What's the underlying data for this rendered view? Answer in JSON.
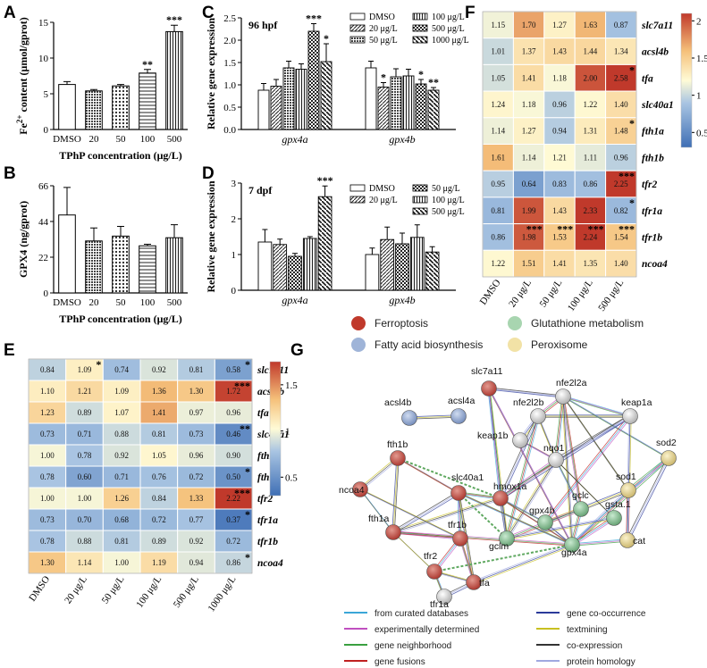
{
  "colors": {
    "ferroptosis": "#c0392b",
    "fatty": "#9fb4d8",
    "glutathione": "#a8d5b0",
    "peroxisome": "#f2e2a6"
  },
  "chart_data": [
    {
      "panel": "A",
      "type": "bar",
      "categories": [
        "DMSO",
        "20",
        "50",
        "100",
        "500"
      ],
      "values": [
        6.3,
        5.4,
        6.1,
        7.9,
        13.7
      ],
      "errors": [
        0.4,
        0.2,
        0.2,
        0.5,
        0.9
      ],
      "sig": [
        "",
        "",
        "",
        "**",
        "***"
      ],
      "patterns": [
        "white",
        "dense",
        "dots",
        "hlines",
        "vlines"
      ],
      "ylabel": "Fe2+ content (μmol/gprot)",
      "ylabel_parts": [
        "Fe",
        "2+",
        " content (μmol/gprot)"
      ],
      "xlabel": "TPhP concentration (μg/L)",
      "yticks": [
        "0",
        "5",
        "10",
        "15"
      ],
      "ylim": [
        0,
        15
      ]
    },
    {
      "panel": "B",
      "type": "bar",
      "categories": [
        "DMSO",
        "20",
        "50",
        "100",
        "500"
      ],
      "values": [
        48,
        32,
        35,
        29,
        34
      ],
      "errors": [
        17,
        8,
        6,
        1,
        8
      ],
      "patterns": [
        "white",
        "dense",
        "dots",
        "hlines",
        "vlines"
      ],
      "ylabel": "GPX4 (ng/gprot)",
      "xlabel": "TPhP concentration (μg/L)",
      "yticks": [
        "0",
        "22",
        "44",
        "66"
      ],
      "ylim": [
        0,
        66
      ]
    },
    {
      "panel": "C",
      "type": "bar",
      "annotation": "96 hpf",
      "groups": [
        "gpx4a",
        "gpx4b"
      ],
      "series": [
        {
          "name": "DMSO",
          "pattern": "white",
          "values": [
            0.88,
            1.38
          ],
          "errors": [
            0.15,
            0.15
          ]
        },
        {
          "name": "20 μg/L",
          "pattern": "diag",
          "values": [
            0.97,
            0.95
          ],
          "errors": [
            0.15,
            0.1
          ]
        },
        {
          "name": "50 μg/L",
          "pattern": "dense",
          "values": [
            1.38,
            1.18
          ],
          "errors": [
            0.15,
            0.18
          ]
        },
        {
          "name": "100 μg/L",
          "pattern": "vlines",
          "values": [
            1.35,
            1.2
          ],
          "errors": [
            0.12,
            0.15
          ]
        },
        {
          "name": "500 μg/L",
          "pattern": "check",
          "values": [
            2.2,
            1.02
          ],
          "errors": [
            0.17,
            0.1
          ]
        },
        {
          "name": "1000 μg/L",
          "pattern": "bdiag",
          "values": [
            1.52,
            0.88
          ],
          "errors": [
            0.4,
            0.06
          ]
        }
      ],
      "sig": [
        [
          "",
          "",
          "",
          "",
          "***",
          "*"
        ],
        [
          "",
          "*",
          "",
          "",
          "*",
          "**"
        ]
      ],
      "ylabel": "Relative gene expression",
      "yticks": [
        "0.0",
        "0.5",
        "1.0",
        "1.5",
        "2.0",
        "2.5"
      ],
      "ylim": [
        0,
        2.5
      ]
    },
    {
      "panel": "D",
      "type": "bar",
      "annotation": "7 dpf",
      "groups": [
        "gpx4a",
        "gpx4b"
      ],
      "series": [
        {
          "name": "DMSO",
          "pattern": "white",
          "values": [
            1.35,
            1.0
          ],
          "errors": [
            0.35,
            0.18
          ]
        },
        {
          "name": "20 μg/L",
          "pattern": "diag",
          "values": [
            1.28,
            1.42
          ],
          "errors": [
            0.15,
            0.35
          ]
        },
        {
          "name": "50 μg/L",
          "pattern": "check",
          "values": [
            0.95,
            1.3
          ],
          "errors": [
            0.08,
            0.3
          ]
        },
        {
          "name": "100 μg/L",
          "pattern": "vlines",
          "values": [
            1.45,
            1.48
          ],
          "errors": [
            0.05,
            0.35
          ]
        },
        {
          "name": "500 μg/L",
          "pattern": "bdiag",
          "values": [
            2.62,
            1.07
          ],
          "errors": [
            0.3,
            0.15
          ]
        }
      ],
      "sig": [
        [
          "",
          "",
          "",
          "",
          "***"
        ],
        [
          "",
          "",
          "",
          "",
          ""
        ]
      ],
      "ylabel": "Relative gene expression",
      "yticks": [
        "0",
        "1",
        "2",
        "3"
      ],
      "ylim": [
        0,
        3
      ]
    },
    {
      "panel": "E",
      "type": "heatmap",
      "columns": [
        "DMSO",
        "20 μg/L",
        "50 μg/L",
        "100 μg/L",
        "500 μg/L",
        "1000 μg/L"
      ],
      "rows": [
        "slc7a11",
        "acsl4b",
        "tfa",
        "slc40a1",
        "fth1a",
        "fth1b",
        "tfr2",
        "tfr1a",
        "tfr1b",
        "ncoa4"
      ],
      "values": [
        [
          0.84,
          1.09,
          0.74,
          0.92,
          0.81,
          0.58
        ],
        [
          1.1,
          1.21,
          1.09,
          1.36,
          1.3,
          1.72
        ],
        [
          1.23,
          0.89,
          1.07,
          1.41,
          0.97,
          0.96
        ],
        [
          0.73,
          0.71,
          0.88,
          0.81,
          0.73,
          0.46
        ],
        [
          1.0,
          0.78,
          0.92,
          1.05,
          0.96,
          0.9
        ],
        [
          0.78,
          0.6,
          0.71,
          0.76,
          0.72,
          0.5
        ],
        [
          1.0,
          1.0,
          1.26,
          0.84,
          1.33,
          2.22
        ],
        [
          0.73,
          0.7,
          0.68,
          0.72,
          0.77,
          0.37
        ],
        [
          0.78,
          0.88,
          0.81,
          0.89,
          0.92,
          0.72
        ],
        [
          1.3,
          1.14,
          1.0,
          1.19,
          0.94,
          0.86
        ]
      ],
      "sig": [
        [
          "",
          "*",
          "",
          "",
          "",
          "*"
        ],
        [
          "",
          "",
          "",
          "",
          "",
          "***"
        ],
        [
          "",
          "",
          "",
          "",
          "",
          ""
        ],
        [
          "",
          "",
          "",
          "",
          "",
          "**"
        ],
        [
          "",
          "",
          "",
          "",
          "",
          ""
        ],
        [
          "",
          "",
          "",
          "",
          "",
          "*"
        ],
        [
          "",
          "",
          "",
          "",
          "",
          "***"
        ],
        [
          "",
          "",
          "",
          "",
          "",
          "*"
        ],
        [
          "",
          "",
          "",
          "",
          "",
          ""
        ],
        [
          "",
          "",
          "",
          "",
          "",
          "*"
        ]
      ],
      "colorbar_ticks": [
        "0.5",
        "1",
        "1.5"
      ],
      "colorbar_range": [
        0.3,
        1.75
      ]
    },
    {
      "panel": "F",
      "type": "heatmap",
      "columns": [
        "DMSO",
        "20 μg/L",
        "50 μg/L",
        "100 μg/L",
        "500 μg/L"
      ],
      "rows": [
        "slc7a11",
        "acsl4b",
        "tfa",
        "slc40a1",
        "fth1a",
        "fth1b",
        "tfr2",
        "tfr1a",
        "tfr1b",
        "ncoa4"
      ],
      "values": [
        [
          1.15,
          1.7,
          1.27,
          1.63,
          0.87
        ],
        [
          1.01,
          1.37,
          1.43,
          1.44,
          1.34
        ],
        [
          1.05,
          1.41,
          1.18,
          2.0,
          2.58
        ],
        [
          1.24,
          1.18,
          0.96,
          1.22,
          1.4
        ],
        [
          1.14,
          1.27,
          0.94,
          1.31,
          1.48
        ],
        [
          1.61,
          1.14,
          1.21,
          1.11,
          0.96
        ],
        [
          0.95,
          0.64,
          0.83,
          0.86,
          2.25
        ],
        [
          0.81,
          1.99,
          1.43,
          2.33,
          0.82
        ],
        [
          0.86,
          1.98,
          1.53,
          2.24,
          1.54
        ],
        [
          1.22,
          1.51,
          1.41,
          1.35,
          1.4
        ]
      ],
      "sig": [
        [
          "",
          "",
          "",
          "",
          ""
        ],
        [
          "",
          "",
          "",
          "",
          ""
        ],
        [
          "",
          "",
          "",
          "",
          "*"
        ],
        [
          "",
          "",
          "",
          "",
          ""
        ],
        [
          "",
          "",
          "",
          "",
          "*"
        ],
        [
          "",
          "",
          "",
          "",
          ""
        ],
        [
          "",
          "",
          "",
          "",
          "***"
        ],
        [
          "",
          "",
          "",
          "",
          "*"
        ],
        [
          "",
          "***",
          "***",
          "***",
          "***"
        ],
        [
          "",
          "",
          "",
          "",
          ""
        ]
      ],
      "colorbar_ticks": [
        "0.5",
        "1",
        "1.5",
        "2"
      ],
      "colorbar_range": [
        0.3,
        2.1
      ]
    }
  ],
  "network": {
    "panel": "G",
    "categories": [
      {
        "label": "Ferroptosis",
        "color": "#c0392b"
      },
      {
        "label": "Glutathione metabolism",
        "color": "#a8d5b0"
      },
      {
        "label": "Fatty acid biosynthesis",
        "color": "#9fb4d8"
      },
      {
        "label": "Peroxisome",
        "color": "#f2e2a6"
      }
    ],
    "nodes": [
      "slc7a11",
      "nfe2l2a",
      "nfe2l2b",
      "keap1a",
      "acsl4b",
      "acsl4a",
      "keap1b",
      "sod2",
      "nqo1",
      "fth1b",
      "sod1",
      "slc40a1",
      "ncoa4",
      "hmox1a",
      "gclc",
      "gsta.1",
      "gpx4b",
      "cat",
      "fth1a",
      "tfr1b",
      "gclm",
      "gpx4a",
      "tfr2",
      "tfa",
      "tfr1a"
    ],
    "edge_legend": [
      {
        "label": "from curated databases",
        "color": "#3aa6d8"
      },
      {
        "label": "gene co-occurrence",
        "color": "#2b3a9a"
      },
      {
        "label": "experimentally determined",
        "color": "#c050c0"
      },
      {
        "label": "textmining",
        "color": "#c8c020"
      },
      {
        "label": "gene neighborhood",
        "color": "#3aa040"
      },
      {
        "label": "co-expression",
        "color": "#333333"
      },
      {
        "label": "gene fusions",
        "color": "#c02020"
      },
      {
        "label": "protein homology",
        "color": "#a0a8e0"
      }
    ]
  }
}
